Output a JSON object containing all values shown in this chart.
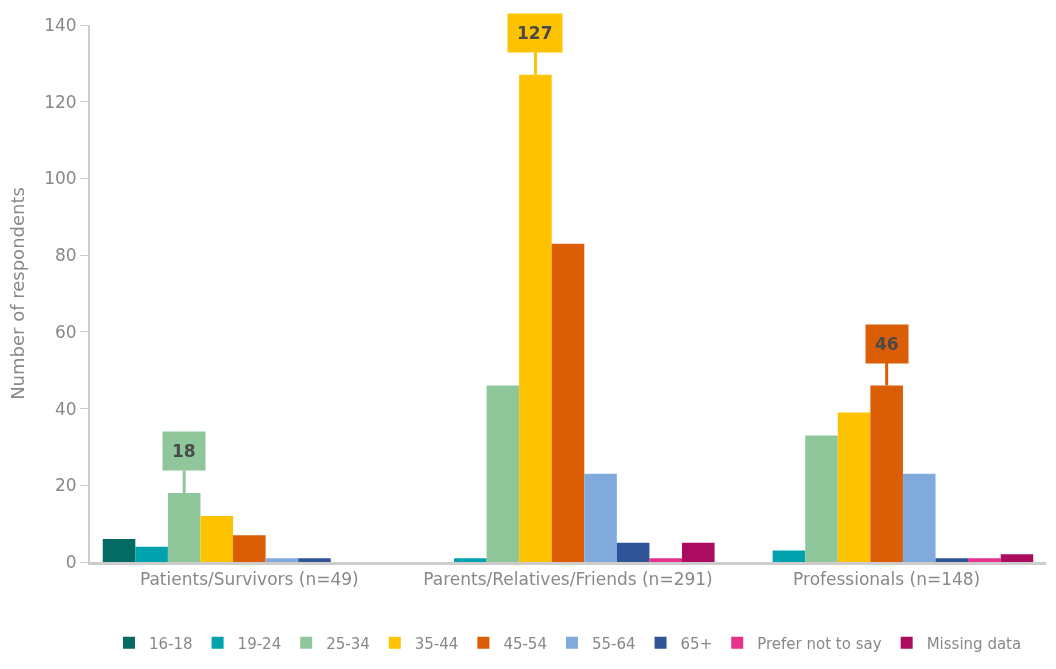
{
  "chart_data": {
    "type": "bar",
    "ylabel": "Number of respondents",
    "categories": [
      "Patients/Survivors (n=49)",
      "Parents/Relatives/Friends (n=291)",
      "Professionals (n=148)"
    ],
    "series": [
      {
        "name": "16-18",
        "color": "#036b63",
        "values": [
          6,
          0,
          0
        ]
      },
      {
        "name": "19-24",
        "color": "#00a2ad",
        "values": [
          4,
          1,
          3
        ]
      },
      {
        "name": "25-34",
        "color": "#8fc79a",
        "values": [
          18,
          46,
          33
        ],
        "value_labels": [
          "18",
          null,
          null
        ]
      },
      {
        "name": "35-44",
        "color": "#fdc300",
        "values": [
          12,
          127,
          39
        ],
        "value_labels": [
          null,
          "127",
          null
        ]
      },
      {
        "name": "45-54",
        "color": "#db5e07",
        "values": [
          7,
          83,
          46
        ],
        "value_labels": [
          null,
          null,
          "46"
        ]
      },
      {
        "name": "55-64",
        "color": "#7faadb",
        "values": [
          1,
          23,
          23
        ]
      },
      {
        "name": "65+",
        "color": "#2f5497",
        "values": [
          1,
          5,
          1
        ]
      },
      {
        "name": "Prefer not to say",
        "color": "#e7328d",
        "values": [
          0,
          1,
          1
        ]
      },
      {
        "name": "Missing data",
        "color": "#ab0c5f",
        "values": [
          0,
          5,
          2
        ]
      }
    ],
    "ylim": [
      0,
      140
    ],
    "yticks": [
      0,
      20,
      40,
      60,
      80,
      100,
      120,
      140
    ],
    "legend": "bottom"
  }
}
